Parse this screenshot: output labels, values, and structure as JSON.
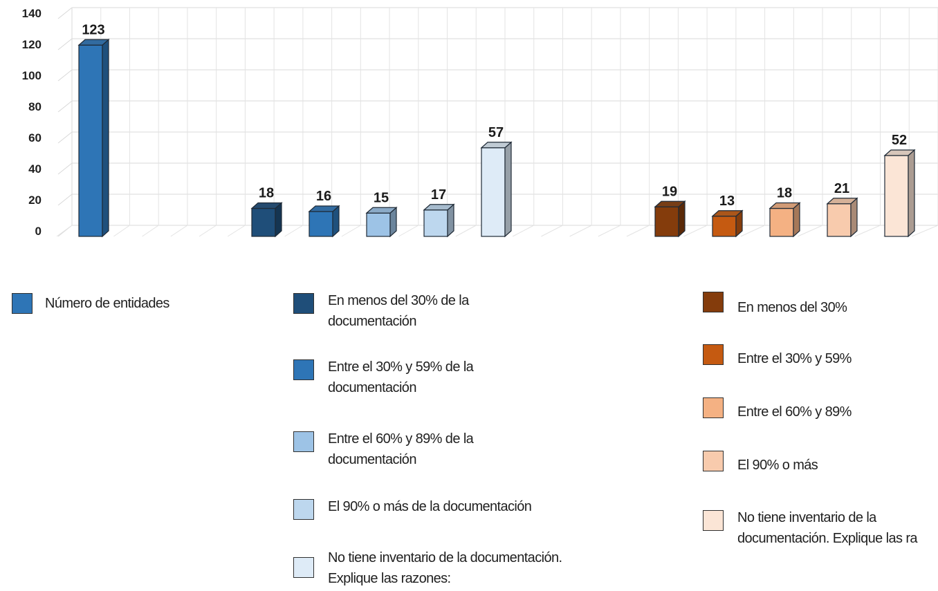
{
  "chart_data": {
    "type": "bar",
    "ylim": [
      0,
      140
    ],
    "yticks": [
      0,
      20,
      40,
      60,
      80,
      100,
      120,
      140
    ],
    "grid": true,
    "three_d": true,
    "groups": [
      {
        "bars": [
          {
            "name": "Número de entidades",
            "value": 123,
            "color": "#2E75B6"
          }
        ]
      },
      {
        "bars": [
          {
            "name": "En menos del 30% de la documentación",
            "value": 18,
            "color": "#1F4E79"
          },
          {
            "name": "Entre el 30% y 59% de la documentación",
            "value": 16,
            "color": "#2E75B6"
          },
          {
            "name": "Entre el 60% y 89% de la documentación",
            "value": 15,
            "color": "#9DC3E6"
          },
          {
            "name": "El 90% o más de la documentación",
            "value": 17,
            "color": "#BDD7EE"
          },
          {
            "name": "No tiene inventario de la documentación. Explique las razones:",
            "value": 57,
            "color": "#DEEBF7"
          }
        ]
      },
      {
        "bars": [
          {
            "name": "En menos del 30%",
            "value": 19,
            "color": "#843C0C"
          },
          {
            "name": "Entre el 30% y 59%",
            "value": 13,
            "color": "#C55A11"
          },
          {
            "name": "Entre el 60% y 89%",
            "value": 18,
            "color": "#F4B183"
          },
          {
            "name": "El 90% o más",
            "value": 21,
            "color": "#F8CBAD"
          },
          {
            "name": "No tiene inventario de la documentación. Explique las ra",
            "value": 52,
            "color": "#FBE5D6"
          }
        ]
      }
    ]
  },
  "legend": {
    "col1": [
      {
        "label": "Número de entidades",
        "color": "#2E75B6"
      }
    ],
    "col2": [
      {
        "label": "En menos del 30% de la documentación",
        "color": "#1F4E79"
      },
      {
        "label": "Entre el 30% y 59% de la documentación",
        "color": "#2E75B6"
      },
      {
        "label": "Entre el 60% y 89% de la documentación",
        "color": "#9DC3E6"
      },
      {
        "label": "El 90% o más de la documentación",
        "color": "#BDD7EE"
      },
      {
        "label": "No tiene inventario de la documentación. Explique las razones:",
        "color": "#DEEBF7"
      }
    ],
    "col3": [
      {
        "label": "En menos del 30%",
        "color": "#843C0C"
      },
      {
        "label": "Entre el 30% y 59%",
        "color": "#C55A11"
      },
      {
        "label": "Entre el 60% y 89%",
        "color": "#F4B183"
      },
      {
        "label": "El 90% o más",
        "color": "#F8CBAD"
      },
      {
        "label": "No tiene inventario de la documentación. Explique las ra",
        "color": "#FBE5D6"
      }
    ]
  }
}
